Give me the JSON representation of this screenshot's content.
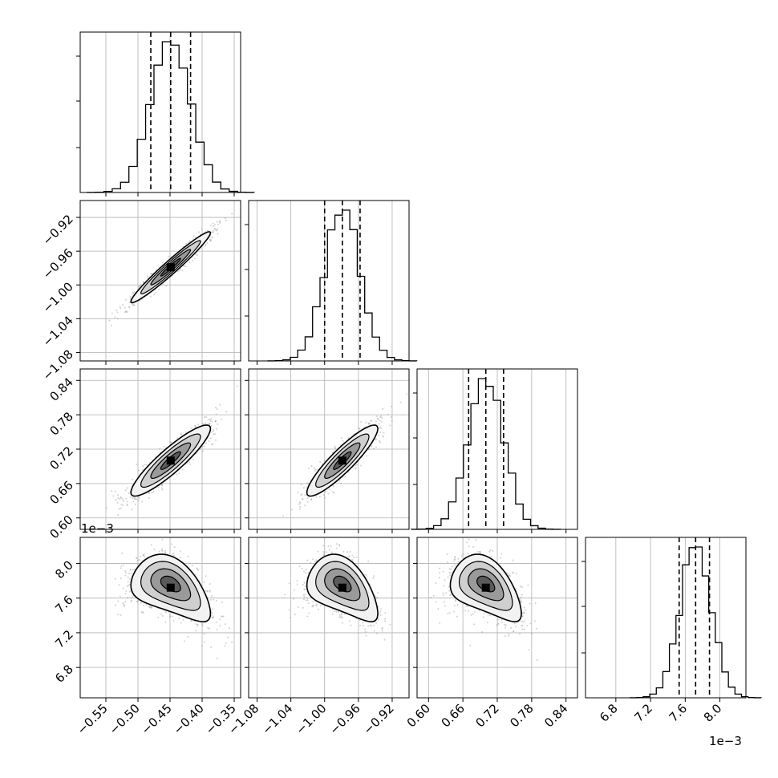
{
  "figure": {
    "title": "",
    "offset_y_label": "1e−3",
    "offset_x_label": "1e−3"
  },
  "style": {
    "axis_color": "#000000",
    "grid_color": "#b0b0b0",
    "point_color": "#9a9a9a",
    "contour_color": "#000000",
    "shade_levels": [
      "#f2f2f2",
      "#cfcfcf",
      "#9a9a9a",
      "#5a5a5a",
      "#000000"
    ]
  },
  "chart_data": {
    "type": "corner",
    "grid": true,
    "parameters": [
      {
        "index": 0,
        "range": [
          -0.59,
          -0.34
        ],
        "ticks": [
          "−0.55",
          "−0.50",
          "−0.45",
          "−0.40",
          "−0.35"
        ],
        "tick_values": [
          -0.55,
          -0.5,
          -0.45,
          -0.4,
          -0.35
        ],
        "quantiles": [
          -0.48,
          -0.449,
          -0.418
        ],
        "median": -0.449,
        "sigma": 0.031,
        "histogram_peak": 2.1,
        "histogram_ticks": [
          0,
          0.5,
          1.0,
          1.5
        ]
      },
      {
        "index": 1,
        "range": [
          -1.09,
          -0.9
        ],
        "ticks": [
          "−1.08",
          "−1.04",
          "−1.00",
          "−0.96",
          "−0.92"
        ],
        "tick_values": [
          -1.08,
          -1.04,
          -1.0,
          -0.96,
          -0.92
        ],
        "quantiles": [
          -1.0,
          -0.979,
          -0.958
        ],
        "median": -0.979,
        "sigma": 0.021,
        "histogram_peak": 2.1,
        "histogram_ticks": [
          0,
          0.5,
          1.0,
          1.5,
          2.0
        ]
      },
      {
        "index": 2,
        "range": [
          0.58,
          0.86
        ],
        "ticks": [
          "0.60",
          "0.66",
          "0.72",
          "0.78",
          "0.84"
        ],
        "tick_values": [
          0.6,
          0.66,
          0.72,
          0.78,
          0.84
        ],
        "quantiles": [
          0.67,
          0.7,
          0.731
        ],
        "median": 0.7,
        "sigma": 0.031,
        "histogram_peak": 2.1,
        "histogram_ticks": [
          0,
          0.5,
          1.0,
          1.5,
          2.0
        ]
      },
      {
        "index": 3,
        "range": [
          6.45,
          8.3
        ],
        "ticks": [
          "6.8",
          "7.2",
          "7.6",
          "8.0"
        ],
        "tick_values": [
          6.8,
          7.2,
          7.6,
          8.0
        ],
        "quantiles": [
          7.53,
          7.72,
          7.88
        ],
        "median": 7.72,
        "sigma": 0.18,
        "histogram_peak": 2.1,
        "histogram_ticks": [
          0,
          0.5,
          1.0,
          1.5,
          2.0
        ],
        "scale_label": "1e−3"
      }
    ],
    "pairs": [
      {
        "x": 0,
        "y": 1,
        "correlation": 0.97,
        "shape": "linear"
      },
      {
        "x": 0,
        "y": 2,
        "correlation": 0.9,
        "shape": "linear"
      },
      {
        "x": 1,
        "y": 2,
        "correlation": 0.9,
        "shape": "linear"
      },
      {
        "x": 0,
        "y": 3,
        "correlation": -0.45,
        "shape": "banana"
      },
      {
        "x": 1,
        "y": 3,
        "correlation": -0.45,
        "shape": "banana"
      },
      {
        "x": 2,
        "y": 3,
        "correlation": -0.45,
        "shape": "banana"
      }
    ]
  }
}
